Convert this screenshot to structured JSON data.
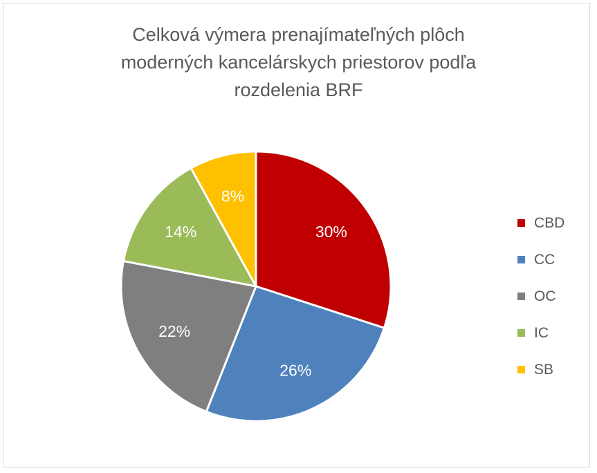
{
  "chart_data": {
    "type": "pie",
    "title_lines": [
      "Celková výmera prenajímateľných plôch",
      "moderných kancelárskych priestorov podľa",
      "rozdelenia BRF"
    ],
    "categories": [
      "CBD",
      "CC",
      "OC",
      "IC",
      "SB"
    ],
    "values": [
      30,
      26,
      22,
      14,
      8
    ],
    "labels": [
      "30%",
      "26%",
      "22%",
      "14%",
      "8%"
    ],
    "colors": [
      "#c00000",
      "#4f81bd",
      "#7f7f7f",
      "#9bbb59",
      "#ffc000"
    ],
    "legend_position": "right"
  }
}
